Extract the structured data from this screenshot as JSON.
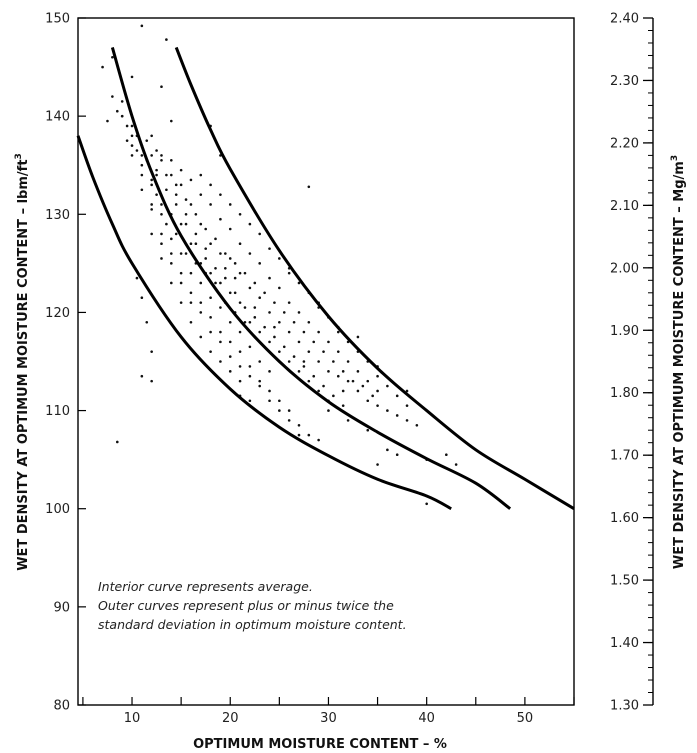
{
  "chart_data": {
    "type": "scatter",
    "xlabel": "OPTIMUM MOISTURE CONTENT – %",
    "ylabel": "WET DENSITY AT OPTIMUM MOISTURE CONTENT – lbm/ft",
    "ylabel_sup": "3",
    "y2label": "WET DENSITY AT OPTIMUM MOISTURE CONTENT – Mg/m",
    "y2label_sup": "3",
    "xlim": [
      4.5,
      55
    ],
    "ylim": [
      80,
      150
    ],
    "y2lim": [
      1.3,
      2.4
    ],
    "xticks": [
      "10",
      "20",
      "30",
      "40",
      "50"
    ],
    "yticks": [
      "80",
      "90",
      "100",
      "110",
      "120",
      "130",
      "140",
      "150"
    ],
    "y2ticks": [
      "1.30",
      "1.40",
      "1.50",
      "1.60",
      "1.70",
      "1.80",
      "1.90",
      "2.00",
      "2.10",
      "2.20",
      "2.30",
      "2.40"
    ],
    "annotation": [
      "Interior curve represents average.",
      "Outer curves represent plus or minus twice the",
      "standard deviation in optimum moisture content."
    ],
    "series": [
      {
        "role": "curve",
        "points": [
          [
            8.0,
            147.0
          ],
          [
            10,
            140.0
          ],
          [
            12,
            134.3
          ],
          [
            15,
            127.8
          ],
          [
            20,
            120.4
          ],
          [
            25,
            115.0
          ],
          [
            30,
            110.9
          ],
          [
            35,
            107.8
          ],
          [
            40,
            105.1
          ],
          [
            45,
            102.6
          ],
          [
            48.5,
            100.0
          ]
        ]
      },
      {
        "role": "curve",
        "points": [
          [
            4.5,
            138.0
          ],
          [
            6,
            133.8
          ],
          [
            8,
            129.0
          ],
          [
            10,
            125.0
          ],
          [
            15,
            117.5
          ],
          [
            20,
            112.2
          ],
          [
            25,
            108.3
          ],
          [
            30,
            105.4
          ],
          [
            35,
            103.0
          ],
          [
            40,
            101.3
          ],
          [
            42.5,
            100.0
          ]
        ]
      },
      {
        "role": "curve",
        "points": [
          [
            14.5,
            147.0
          ],
          [
            16,
            143.2
          ],
          [
            18,
            138.6
          ],
          [
            20,
            134.6
          ],
          [
            25,
            126.3
          ],
          [
            30,
            119.6
          ],
          [
            35,
            114.3
          ],
          [
            40,
            110.0
          ],
          [
            45,
            106.0
          ],
          [
            50,
            103.0
          ],
          [
            55,
            100.0
          ]
        ]
      },
      {
        "role": "scatter",
        "points": [
          [
            11,
            149.2
          ],
          [
            13.5,
            147.8
          ],
          [
            7,
            145
          ],
          [
            8,
            146
          ],
          [
            10,
            144
          ],
          [
            13,
            143
          ],
          [
            9.5,
            139
          ],
          [
            12,
            138
          ],
          [
            14,
            139.5
          ],
          [
            18,
            139
          ],
          [
            19,
            136
          ],
          [
            8,
            142
          ],
          [
            9,
            141.5
          ],
          [
            7.5,
            139.5
          ],
          [
            8.5,
            140.5
          ],
          [
            9,
            140
          ],
          [
            10,
            139
          ],
          [
            10.5,
            138
          ],
          [
            11,
            137
          ],
          [
            12,
            136
          ],
          [
            13,
            135.5
          ],
          [
            12.5,
            134.5
          ],
          [
            14,
            134
          ],
          [
            15,
            133
          ],
          [
            14.5,
            132
          ],
          [
            16,
            131
          ],
          [
            15.5,
            130
          ],
          [
            17,
            129
          ],
          [
            16.5,
            128
          ],
          [
            18,
            127
          ],
          [
            17.5,
            126.5
          ],
          [
            19,
            126
          ],
          [
            20,
            125.5
          ],
          [
            19.5,
            124.5
          ],
          [
            21,
            124
          ],
          [
            20.5,
            123.5
          ],
          [
            22,
            122.5
          ],
          [
            23,
            121.5
          ],
          [
            22.5,
            120.5
          ],
          [
            24,
            120
          ],
          [
            25,
            119
          ],
          [
            24.5,
            118.5
          ],
          [
            26,
            118
          ],
          [
            27,
            117
          ],
          [
            28,
            116
          ],
          [
            27.5,
            115
          ],
          [
            29,
            115
          ],
          [
            30,
            114
          ],
          [
            31,
            113.5
          ],
          [
            32,
            113
          ],
          [
            31.5,
            112
          ],
          [
            33,
            112
          ],
          [
            34,
            111
          ],
          [
            35,
            110.5
          ],
          [
            36,
            110
          ],
          [
            37,
            109.5
          ],
          [
            38,
            109
          ],
          [
            12,
            133
          ],
          [
            13,
            131
          ],
          [
            14,
            130
          ],
          [
            15,
            129
          ],
          [
            16,
            127
          ],
          [
            17,
            125
          ],
          [
            18,
            124
          ],
          [
            19,
            123
          ],
          [
            20,
            122
          ],
          [
            21,
            121
          ],
          [
            22,
            119
          ],
          [
            23,
            118
          ],
          [
            24,
            117
          ],
          [
            25,
            116
          ],
          [
            26,
            115
          ],
          [
            27,
            114
          ],
          [
            28,
            113
          ],
          [
            29,
            112
          ],
          [
            30,
            111
          ],
          [
            11,
            135
          ],
          [
            12.5,
            132
          ],
          [
            13.5,
            129
          ],
          [
            14.5,
            128
          ],
          [
            15.5,
            126
          ],
          [
            16.5,
            125
          ],
          [
            17.5,
            124
          ],
          [
            18.5,
            123
          ],
          [
            19.5,
            121
          ],
          [
            20.5,
            120
          ],
          [
            21.5,
            119
          ],
          [
            13,
            136
          ],
          [
            14,
            135.5
          ],
          [
            15,
            134.5
          ],
          [
            16,
            133.5
          ],
          [
            17,
            132
          ],
          [
            18,
            131
          ],
          [
            19,
            129.5
          ],
          [
            20,
            128.5
          ],
          [
            21,
            127
          ],
          [
            22,
            126
          ],
          [
            23,
            125
          ],
          [
            24,
            123.5
          ],
          [
            25,
            122.5
          ],
          [
            26,
            121
          ],
          [
            27,
            120
          ],
          [
            28,
            119
          ],
          [
            29,
            118
          ],
          [
            30,
            117
          ],
          [
            31,
            116
          ],
          [
            32,
            115
          ],
          [
            33,
            114
          ],
          [
            34,
            113
          ],
          [
            35,
            112
          ],
          [
            10,
            137
          ],
          [
            11,
            134
          ],
          [
            12,
            131
          ],
          [
            13,
            128
          ],
          [
            14,
            126
          ],
          [
            15,
            124
          ],
          [
            16,
            122
          ],
          [
            17,
            121
          ],
          [
            18,
            119.5
          ],
          [
            19,
            118
          ],
          [
            20,
            117
          ],
          [
            21,
            116
          ],
          [
            22,
            114.5
          ],
          [
            23,
            113
          ],
          [
            24,
            112
          ],
          [
            25,
            111
          ],
          [
            26,
            110
          ],
          [
            27,
            108.5
          ],
          [
            28,
            107.5
          ],
          [
            12,
            116
          ],
          [
            12,
            113
          ],
          [
            11,
            113.5
          ],
          [
            8.5,
            106.8
          ],
          [
            10.5,
            123.5
          ],
          [
            11,
            121.5
          ],
          [
            11.5,
            119
          ],
          [
            21,
            111.5
          ],
          [
            22,
            111
          ],
          [
            28,
            132.8
          ],
          [
            26,
            124
          ],
          [
            29,
            121
          ],
          [
            31,
            118.5
          ],
          [
            33,
            117.5
          ],
          [
            35,
            114.5
          ],
          [
            38,
            112
          ],
          [
            36,
            106
          ],
          [
            37,
            105.5
          ],
          [
            40,
            105
          ],
          [
            42,
            105.5
          ],
          [
            43,
            104.5
          ],
          [
            40,
            100.5
          ],
          [
            35,
            104.5
          ],
          [
            39,
            108.5
          ],
          [
            34,
            108
          ],
          [
            32,
            109
          ],
          [
            30,
            110
          ],
          [
            29,
            107
          ],
          [
            27,
            107.5
          ],
          [
            24,
            114
          ],
          [
            23,
            115
          ],
          [
            22,
            116.5
          ],
          [
            21,
            118
          ],
          [
            20,
            119
          ],
          [
            19,
            120.5
          ],
          [
            18,
            121.5
          ],
          [
            17,
            123
          ],
          [
            16,
            124
          ],
          [
            15,
            126
          ],
          [
            14,
            127.5
          ],
          [
            13,
            130
          ],
          [
            12,
            133.5
          ],
          [
            11,
            136
          ],
          [
            10,
            138
          ],
          [
            9,
            140
          ],
          [
            11.5,
            137.5
          ],
          [
            12.5,
            136.5
          ],
          [
            13.5,
            134
          ],
          [
            14.5,
            133
          ],
          [
            15.5,
            131.5
          ],
          [
            16.5,
            130
          ],
          [
            17.5,
            128.5
          ],
          [
            18.5,
            127.5
          ],
          [
            19.5,
            126
          ],
          [
            20.5,
            125
          ],
          [
            21.5,
            124
          ],
          [
            22.5,
            123
          ],
          [
            23.5,
            122
          ],
          [
            24.5,
            121
          ],
          [
            25.5,
            120
          ],
          [
            26.5,
            119
          ],
          [
            27.5,
            118
          ],
          [
            28.5,
            117
          ],
          [
            29.5,
            116
          ],
          [
            30.5,
            115
          ],
          [
            31.5,
            114
          ],
          [
            32.5,
            113
          ],
          [
            33.5,
            112.5
          ],
          [
            34.5,
            111.5
          ],
          [
            10.5,
            136.5
          ],
          [
            11.5,
            135.5
          ],
          [
            12.5,
            134
          ],
          [
            13.5,
            132.5
          ],
          [
            14.5,
            131
          ],
          [
            15.5,
            129
          ],
          [
            16.5,
            127
          ],
          [
            17.5,
            125.5
          ],
          [
            18.5,
            124.5
          ],
          [
            19.5,
            123.5
          ],
          [
            20.5,
            122
          ],
          [
            21.5,
            120.5
          ],
          [
            22.5,
            119.5
          ],
          [
            23.5,
            118.5
          ],
          [
            24.5,
            117.5
          ],
          [
            25.5,
            116.5
          ],
          [
            26.5,
            115.5
          ],
          [
            27.5,
            114.5
          ],
          [
            28.5,
            113.5
          ],
          [
            29.5,
            112.5
          ],
          [
            30.5,
            111.5
          ],
          [
            31.5,
            110.5
          ],
          [
            9.5,
            137.5
          ],
          [
            10,
            136
          ],
          [
            11,
            132.5
          ],
          [
            12,
            130.5
          ],
          [
            13,
            127
          ],
          [
            14,
            125
          ],
          [
            15,
            123
          ],
          [
            16,
            121
          ],
          [
            17,
            120
          ],
          [
            18,
            118
          ],
          [
            19,
            117
          ],
          [
            20,
            115.5
          ],
          [
            21,
            114.5
          ],
          [
            22,
            113.5
          ],
          [
            23,
            112.5
          ],
          [
            24,
            111
          ],
          [
            25,
            110
          ],
          [
            26,
            109
          ],
          [
            12,
            128
          ],
          [
            13,
            125.5
          ],
          [
            14,
            123
          ],
          [
            15,
            121
          ],
          [
            16,
            119
          ],
          [
            17,
            117.5
          ],
          [
            18,
            116
          ],
          [
            19,
            115
          ],
          [
            20,
            114
          ],
          [
            21,
            113
          ],
          [
            17,
            134
          ],
          [
            18,
            133
          ],
          [
            19,
            132
          ],
          [
            20,
            131
          ],
          [
            21,
            130
          ],
          [
            22,
            129
          ],
          [
            23,
            128
          ],
          [
            24,
            126.5
          ],
          [
            25,
            125.5
          ],
          [
            26,
            124.5
          ],
          [
            27,
            123
          ],
          [
            28,
            122
          ],
          [
            29,
            120.5
          ],
          [
            30,
            119.5
          ],
          [
            31,
            118
          ],
          [
            32,
            117
          ],
          [
            33,
            116
          ],
          [
            34,
            115
          ],
          [
            35,
            113.5
          ],
          [
            36,
            112.5
          ],
          [
            37,
            111.5
          ],
          [
            38,
            110.5
          ]
        ]
      }
    ]
  }
}
